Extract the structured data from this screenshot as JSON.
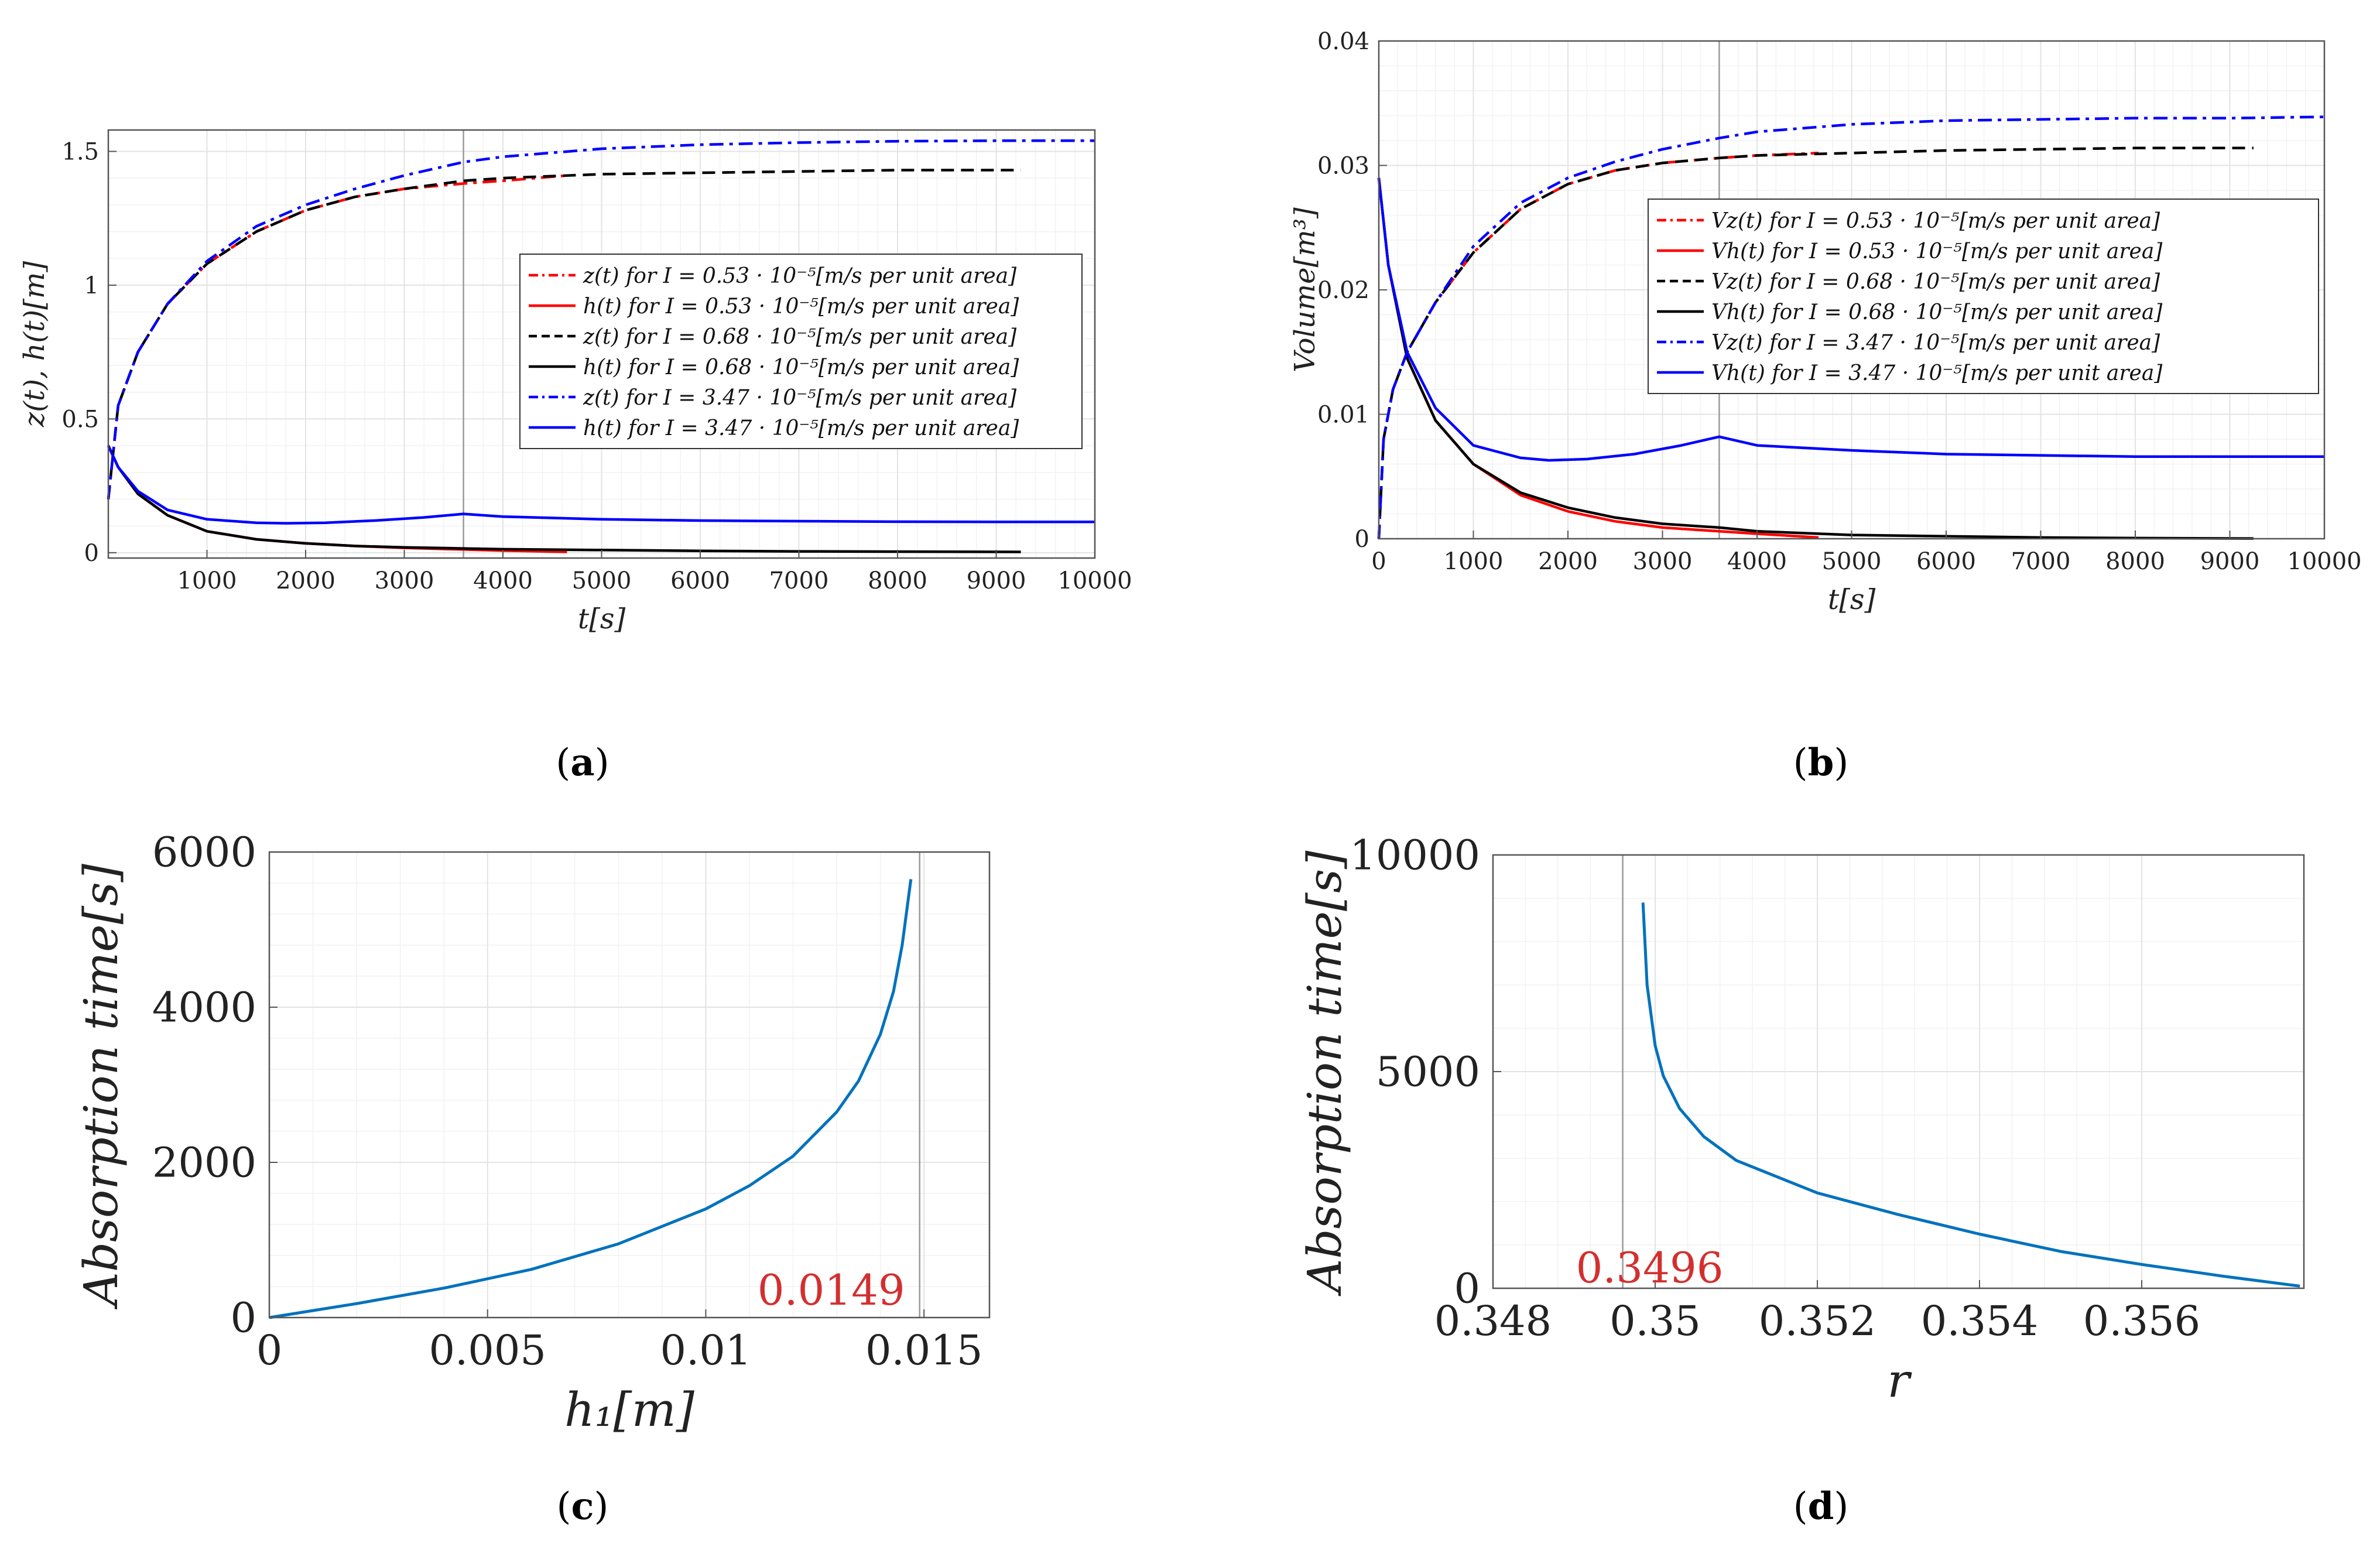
{
  "panels": [
    {
      "caption_letter": "a",
      "chart_data": {
        "type": "line",
        "xlabel": "t[s]",
        "ylabel": "z(t), h(t)[m]",
        "xlim": [
          0,
          10000
        ],
        "ylim": [
          -0.02,
          1.58
        ],
        "xticks": [
          1000,
          2000,
          3000,
          4000,
          5000,
          6000,
          7000,
          8000,
          9000,
          10000
        ],
        "xtick_labels": [
          "1000",
          "2000",
          "3000",
          "4000",
          "5000",
          "6000",
          "7000",
          "8000",
          "9000",
          "10000"
        ],
        "yticks": [
          0,
          0.5,
          1,
          1.5
        ],
        "ytick_labels": [
          "0",
          "0.5",
          "1",
          "1.5"
        ],
        "vline": 3600,
        "grid": true,
        "legend_position": "center-right",
        "series": [
          {
            "name": "z(t) for I = 0.53 · 10⁻⁵[m/s per unit area]",
            "color": "#ff0000",
            "dash": "dashdot",
            "x": [
              0,
              100,
              300,
              600,
              1000,
              1500,
              2000,
              2500,
              3000,
              3600,
              4000,
              4650
            ],
            "y": [
              0.2,
              0.55,
              0.75,
              0.93,
              1.08,
              1.2,
              1.28,
              1.33,
              1.36,
              1.38,
              1.39,
              1.41
            ]
          },
          {
            "name": "h(t) for I = 0.53 · 10⁻⁵[m/s per unit area]",
            "color": "#ff0000",
            "dash": "solid",
            "x": [
              0,
              100,
              300,
              600,
              1000,
              1500,
              2000,
              2500,
              3000,
              3600,
              4000,
              4650
            ],
            "y": [
              0.4,
              0.32,
              0.22,
              0.14,
              0.08,
              0.05,
              0.035,
              0.025,
              0.018,
              0.012,
              0.008,
              0.003
            ]
          },
          {
            "name": "z(t) for I = 0.68 · 10⁻⁵[m/s per unit area]",
            "color": "#000000",
            "dash": "dash",
            "x": [
              0,
              100,
              300,
              600,
              1000,
              1500,
              2000,
              2500,
              3000,
              3600,
              4000,
              5000,
              6000,
              7000,
              8000,
              9250
            ],
            "y": [
              0.2,
              0.55,
              0.75,
              0.93,
              1.08,
              1.2,
              1.28,
              1.33,
              1.36,
              1.39,
              1.4,
              1.415,
              1.42,
              1.425,
              1.43,
              1.43
            ]
          },
          {
            "name": "h(t) for I = 0.68 · 10⁻⁵[m/s per unit area]",
            "color": "#000000",
            "dash": "solid",
            "x": [
              0,
              100,
              300,
              600,
              1000,
              1500,
              2000,
              2500,
              3000,
              3600,
              4000,
              5000,
              6000,
              7000,
              8000,
              9250
            ],
            "y": [
              0.4,
              0.32,
              0.22,
              0.14,
              0.08,
              0.05,
              0.035,
              0.025,
              0.02,
              0.016,
              0.013,
              0.01,
              0.007,
              0.005,
              0.004,
              0.003
            ]
          },
          {
            "name": "z(t) for I = 3.47 · 10⁻⁵[m/s per unit area]",
            "color": "#0000ff",
            "dash": "dashdot",
            "x": [
              0,
              100,
              300,
              600,
              1000,
              1500,
              2000,
              2500,
              3000,
              3600,
              4000,
              5000,
              6000,
              7000,
              8000,
              9000,
              10000
            ],
            "y": [
              0.2,
              0.55,
              0.75,
              0.93,
              1.09,
              1.22,
              1.3,
              1.36,
              1.41,
              1.46,
              1.48,
              1.51,
              1.525,
              1.533,
              1.538,
              1.54,
              1.54
            ]
          },
          {
            "name": "h(t) for I = 3.47 · 10⁻⁵[m/s per unit area]",
            "color": "#0000ff",
            "dash": "solid",
            "x": [
              0,
              100,
              300,
              600,
              1000,
              1500,
              1800,
              2200,
              2700,
              3200,
              3600,
              4000,
              5000,
              6000,
              7000,
              8000,
              9000,
              10000
            ],
            "y": [
              0.4,
              0.32,
              0.23,
              0.16,
              0.125,
              0.112,
              0.11,
              0.112,
              0.12,
              0.132,
              0.145,
              0.135,
              0.125,
              0.12,
              0.118,
              0.116,
              0.115,
              0.115
            ]
          }
        ]
      }
    },
    {
      "caption_letter": "b",
      "chart_data": {
        "type": "line",
        "xlabel": "t[s]",
        "ylabel": "Volume[m³]",
        "xlim": [
          0,
          10000
        ],
        "ylim": [
          0,
          0.04
        ],
        "xticks": [
          0,
          1000,
          2000,
          3000,
          4000,
          5000,
          6000,
          7000,
          8000,
          9000,
          10000
        ],
        "xtick_labels": [
          "0",
          "1000",
          "2000",
          "3000",
          "4000",
          "5000",
          "6000",
          "7000",
          "8000",
          "9000",
          "10000"
        ],
        "yticks": [
          0,
          0.01,
          0.02,
          0.03,
          0.04
        ],
        "ytick_labels": [
          "0",
          "0.01",
          "0.02",
          "0.03",
          "0.04"
        ],
        "vline": 3600,
        "grid": true,
        "legend_position": "center-right",
        "series": [
          {
            "name": "Vz(t) for I = 0.53 · 10⁻⁵[m/s per unit area]",
            "color": "#ff0000",
            "dash": "dashdot",
            "x": [
              0,
              50,
              150,
              300,
              600,
              1000,
              1500,
              2000,
              2500,
              3000,
              3600,
              4000,
              4650
            ],
            "y": [
              0,
              0.008,
              0.012,
              0.015,
              0.019,
              0.023,
              0.0265,
              0.0285,
              0.0296,
              0.0302,
              0.0306,
              0.0308,
              0.031
            ]
          },
          {
            "name": "Vh(t) for I = 0.53 · 10⁻⁵[m/s per unit area]",
            "color": "#ff0000",
            "dash": "solid",
            "x": [
              0,
              100,
              300,
              600,
              1000,
              1500,
              2000,
              2500,
              3000,
              3600,
              4000,
              4650
            ],
            "y": [
              0.029,
              0.022,
              0.0145,
              0.0095,
              0.006,
              0.0035,
              0.0022,
              0.0014,
              0.0009,
              0.0006,
              0.0004,
              0.0001
            ]
          },
          {
            "name": "Vz(t) for I = 0.68 · 10⁻⁵[m/s per unit area]",
            "color": "#000000",
            "dash": "dash",
            "x": [
              0,
              50,
              150,
              300,
              600,
              1000,
              1500,
              2000,
              2500,
              3000,
              3600,
              4000,
              5000,
              6000,
              7000,
              8000,
              9250
            ],
            "y": [
              0,
              0.008,
              0.012,
              0.015,
              0.019,
              0.023,
              0.0265,
              0.0285,
              0.0296,
              0.0302,
              0.0306,
              0.0308,
              0.031,
              0.0312,
              0.0313,
              0.0314,
              0.0314
            ]
          },
          {
            "name": "Vh(t) for I = 0.68 · 10⁻⁵[m/s per unit area]",
            "color": "#000000",
            "dash": "solid",
            "x": [
              0,
              100,
              300,
              600,
              1000,
              1500,
              2000,
              2500,
              3000,
              3600,
              4000,
              5000,
              6000,
              7000,
              8000,
              9250
            ],
            "y": [
              0.029,
              0.022,
              0.0145,
              0.0095,
              0.006,
              0.0037,
              0.0025,
              0.0017,
              0.0012,
              0.0009,
              0.0006,
              0.0003,
              0.0002,
              0.0001,
              5e-05,
              2e-05
            ]
          },
          {
            "name": "Vz(t) for I = 3.47 · 10⁻⁵[m/s per unit area]",
            "color": "#0000ff",
            "dash": "dashdot",
            "x": [
              0,
              50,
              150,
              300,
              600,
              1000,
              1500,
              2000,
              2500,
              3000,
              3600,
              4000,
              5000,
              6000,
              7000,
              8000,
              9000,
              10000
            ],
            "y": [
              0,
              0.008,
              0.012,
              0.015,
              0.019,
              0.0235,
              0.027,
              0.029,
              0.0303,
              0.0313,
              0.0322,
              0.0327,
              0.0333,
              0.0336,
              0.0337,
              0.0338,
              0.0338,
              0.0339
            ]
          },
          {
            "name": "Vh(t) for I = 3.47 · 10⁻⁵[m/s per unit area]",
            "color": "#0000ff",
            "dash": "solid",
            "x": [
              0,
              100,
              300,
              600,
              1000,
              1500,
              1800,
              2200,
              2700,
              3200,
              3600,
              4000,
              5000,
              6000,
              7000,
              8000,
              9000,
              10000
            ],
            "y": [
              0.029,
              0.022,
              0.015,
              0.0105,
              0.0075,
              0.0065,
              0.0063,
              0.0064,
              0.0068,
              0.0075,
              0.0082,
              0.0075,
              0.0071,
              0.0068,
              0.0067,
              0.0066,
              0.0066,
              0.0066
            ]
          }
        ]
      }
    },
    {
      "caption_letter": "c",
      "chart_data": {
        "type": "line",
        "xlabel": "h₁[m]",
        "ylabel": "Absorption time[s]",
        "xlim": [
          0,
          0.0165
        ],
        "ylim": [
          0,
          6000
        ],
        "xticks": [
          0,
          0.005,
          0.01,
          0.015
        ],
        "xtick_labels": [
          "0",
          "0.005",
          "0.01",
          "0.015"
        ],
        "yticks": [
          0,
          2000,
          4000,
          6000
        ],
        "ytick_labels": [
          "0",
          "2000",
          "4000",
          "6000"
        ],
        "vline": 0.0149,
        "annotation": "0.0149",
        "annotation_color": "#d32f2f",
        "grid": true,
        "series": [
          {
            "color": "#0072bd",
            "dash": "solid",
            "x": [
              0,
              0.002,
              0.004,
              0.006,
              0.008,
              0.01,
              0.011,
              0.012,
              0.013,
              0.0135,
              0.014,
              0.0143,
              0.0145,
              0.0147
            ],
            "y": [
              0,
              180,
              380,
              620,
              950,
              1400,
              1700,
              2080,
              2650,
              3050,
              3650,
              4200,
              4800,
              5650
            ]
          }
        ]
      }
    },
    {
      "caption_letter": "d",
      "chart_data": {
        "type": "line",
        "xlabel": "r",
        "ylabel": "Absorption time[s]",
        "xlim": [
          0.348,
          0.358
        ],
        "ylim": [
          0,
          10000
        ],
        "xticks": [
          0.348,
          0.35,
          0.352,
          0.354,
          0.356
        ],
        "xtick_labels": [
          "0.348",
          "0.35",
          "0.352",
          "0.354",
          "0.356"
        ],
        "yticks": [
          0,
          5000,
          10000
        ],
        "ytick_labels": [
          "0",
          "5000",
          "10000"
        ],
        "vline": 0.3496,
        "annotation": "0.3496",
        "annotation_color": "#d32f2f",
        "grid": true,
        "series": [
          {
            "color": "#0072bd",
            "dash": "solid",
            "x": [
              0.34985,
              0.3499,
              0.35,
              0.3501,
              0.3503,
              0.3506,
              0.351,
              0.352,
              0.353,
              0.354,
              0.355,
              0.356,
              0.357,
              0.35795
            ],
            "y": [
              8900,
              7000,
              5600,
              4900,
              4150,
              3500,
              2950,
              2200,
              1700,
              1250,
              850,
              550,
              280,
              50
            ]
          }
        ]
      }
    }
  ]
}
